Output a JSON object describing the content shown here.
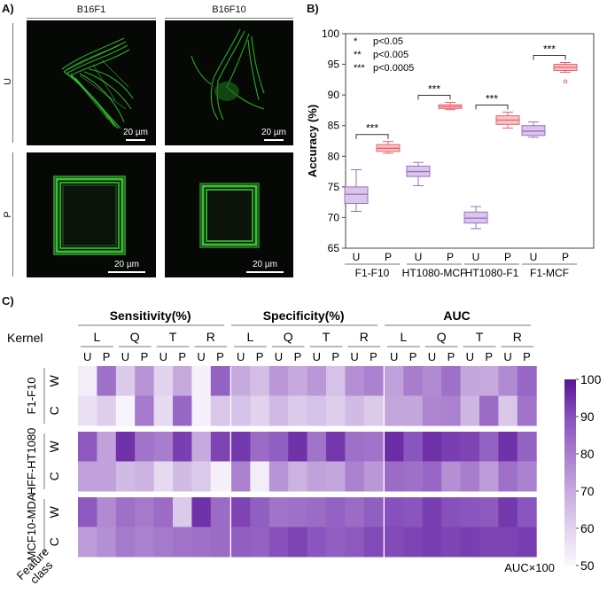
{
  "panels": {
    "a": {
      "label": "A)",
      "columns": [
        "B16F1",
        "B16F10"
      ],
      "rows": [
        "U",
        "P"
      ],
      "scalebars": [
        "20 µm",
        "20 µm",
        "20 µm",
        "20 µm"
      ]
    },
    "b": {
      "label": "B)"
    },
    "c": {
      "label": "C)"
    }
  },
  "chart_data": [
    {
      "type": "box",
      "ylabel": "Accuracy (%)",
      "ylim": [
        65,
        100
      ],
      "yticks": [
        "65",
        "70",
        "75",
        "80",
        "85",
        "90",
        "95",
        "100"
      ],
      "legend": [
        {
          "mark": "*",
          "text": "p<0.05"
        },
        {
          "mark": "**",
          "text": "p<0.005"
        },
        {
          "mark": "***",
          "text": "p<0.0005"
        }
      ],
      "colors": {
        "U": "#9b6fc4",
        "P": "#e8606c"
      },
      "groups": [
        {
          "name": "F1-F10",
          "significance": "***",
          "U": {
            "min": 71.0,
            "q1": 72.3,
            "median": 73.8,
            "q3": 75.0,
            "max": 77.8,
            "outliers": []
          },
          "P": {
            "min": 80.5,
            "q1": 80.8,
            "median": 81.3,
            "q3": 81.9,
            "max": 82.4,
            "outliers": []
          }
        },
        {
          "name": "HT1080-MCF",
          "significance": "***",
          "U": {
            "min": 75.2,
            "q1": 76.7,
            "median": 77.5,
            "q3": 78.4,
            "max": 79.0,
            "outliers": []
          },
          "P": {
            "min": 87.6,
            "q1": 87.8,
            "median": 88.1,
            "q3": 88.4,
            "max": 88.8,
            "outliers": []
          }
        },
        {
          "name": "HT1080-F1",
          "significance": "***",
          "U": {
            "min": 68.2,
            "q1": 69.1,
            "median": 69.9,
            "q3": 70.9,
            "max": 71.8,
            "outliers": []
          },
          "P": {
            "min": 84.6,
            "q1": 85.2,
            "median": 85.9,
            "q3": 86.6,
            "max": 87.2,
            "outliers": []
          }
        },
        {
          "name": "F1-MCF",
          "significance": "***",
          "U": {
            "min": 83.1,
            "q1": 83.4,
            "median": 84.1,
            "q3": 85.0,
            "max": 85.6,
            "outliers": []
          },
          "P": {
            "min": 93.7,
            "q1": 94.0,
            "median": 94.5,
            "q3": 95.0,
            "max": 95.3,
            "outliers": [
              92.2
            ]
          }
        }
      ]
    },
    {
      "type": "heatmap",
      "metrics": [
        "Sensitivity(%)",
        "Specificity(%)",
        "AUC"
      ],
      "kernel_label": "Kernel",
      "kernels": [
        "L",
        "Q",
        "T",
        "R"
      ],
      "feature_classes": [
        "U",
        "P"
      ],
      "datasets": [
        "F1-F10",
        "HFF-HT1080",
        "MCF10-MDA"
      ],
      "rows": [
        "W",
        "C"
      ],
      "feature_class_label": "Feature class",
      "colorbar": {
        "min": 50,
        "max": 100,
        "ticks": [
          "50",
          "60",
          "70",
          "80",
          "90",
          "100"
        ],
        "label": "AUC×100"
      },
      "values": [
        [
          53,
          83,
          62,
          75,
          60,
          70,
          52,
          86,
          70,
          65,
          74,
          70,
          74,
          64,
          76,
          79,
          72,
          80,
          77,
          83,
          71,
          70,
          77,
          85
        ],
        [
          56,
          61,
          51,
          81,
          58,
          85,
          52,
          63,
          64,
          60,
          66,
          62,
          64,
          61,
          66,
          62,
          71,
          71,
          78,
          79,
          67,
          84,
          63,
          82
        ],
        [
          88,
          72,
          95,
          82,
          80,
          93,
          70,
          92,
          94,
          84,
          87,
          95,
          82,
          94,
          83,
          82,
          96,
          89,
          95,
          93,
          92,
          86,
          95,
          86
        ],
        [
          72,
          72,
          66,
          68,
          58,
          66,
          62,
          52,
          79,
          53,
          75,
          68,
          72,
          71,
          79,
          74,
          84,
          83,
          85,
          76,
          80,
          73,
          83,
          79
        ],
        [
          88,
          77,
          83,
          81,
          84,
          62,
          95,
          84,
          92,
          87,
          82,
          83,
          84,
          86,
          84,
          87,
          90,
          89,
          93,
          90,
          89,
          88,
          94,
          89
        ],
        [
          73,
          76,
          81,
          79,
          81,
          82,
          83,
          84,
          87,
          86,
          90,
          92,
          89,
          87,
          88,
          91,
          91,
          92,
          93,
          92,
          93,
          92,
          92,
          93
        ]
      ]
    }
  ]
}
